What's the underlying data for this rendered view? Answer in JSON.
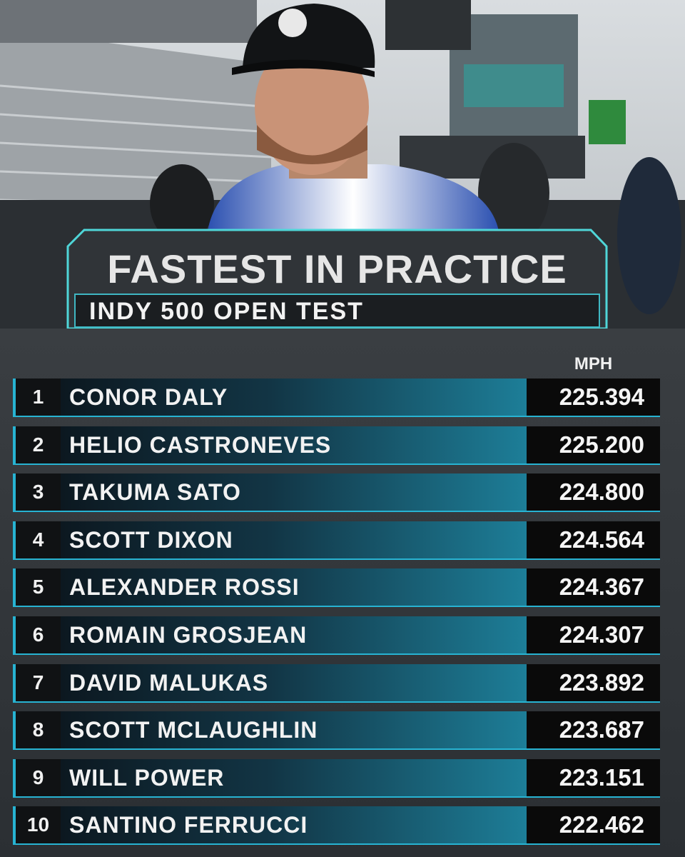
{
  "header": {
    "title": "FASTEST IN PRACTICE",
    "subtitle": "INDY 500 OPEN TEST"
  },
  "table": {
    "column_label": "MPH",
    "rows": [
      [
        "1",
        "CONOR DALY",
        "225.394"
      ],
      [
        "2",
        "HELIO CASTRONEVES",
        "225.200"
      ],
      [
        "3",
        "TAKUMA SATO",
        "224.800"
      ],
      [
        "4",
        "SCOTT DIXON",
        "224.564"
      ],
      [
        "5",
        "ALEXANDER ROSSI",
        "224.367"
      ],
      [
        "6",
        "ROMAIN GROSJEAN",
        "224.307"
      ],
      [
        "7",
        "DAVID MALUKAS",
        "223.892"
      ],
      [
        "8",
        "SCOTT MCLAUGHLIN",
        "223.687"
      ],
      [
        "9",
        "WILL POWER",
        "223.151"
      ],
      [
        "10",
        "SANTINO FERRUCCI",
        "222.462"
      ]
    ]
  }
}
